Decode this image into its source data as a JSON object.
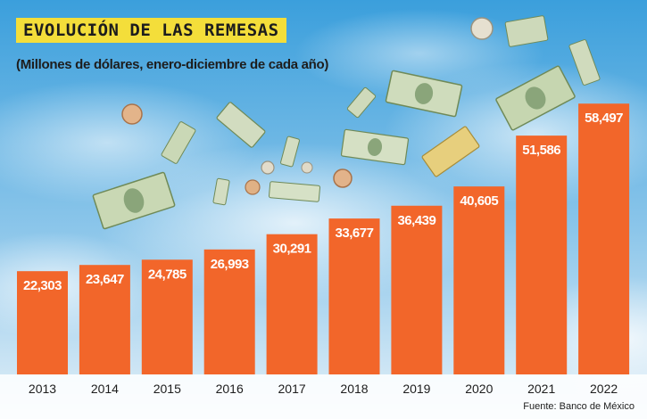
{
  "header": {
    "title": "EVOLUCIÓN DE LAS REMESAS",
    "subtitle": "(Millones de dólares, enero-diciembre de cada año)"
  },
  "footer": {
    "source": "Fuente: Banco de México"
  },
  "colors": {
    "bar": "#f2662a",
    "title_bg": "#f4de3a",
    "sky_top": "#3b9fdc",
    "sky_bottom": "#dcecf7"
  },
  "icons": [
    "dollar-bill-icon",
    "coin-icon"
  ],
  "chart_data": {
    "type": "bar",
    "title": "EVOLUCIÓN DE LAS REMESAS",
    "subtitle": "(Millones de dólares, enero-diciembre de cada año)",
    "categories": [
      "2013",
      "2014",
      "2015",
      "2016",
      "2017",
      "2018",
      "2019",
      "2020",
      "2021",
      "2022"
    ],
    "values": [
      22303,
      23647,
      24785,
      26993,
      30291,
      33677,
      36439,
      40605,
      51586,
      58497
    ],
    "value_labels": [
      "22,303",
      "23,647",
      "24,785",
      "26,993",
      "30,291",
      "33,677",
      "36,439",
      "40,605",
      "51,586",
      "58,497"
    ],
    "xlabel": "",
    "ylabel": "",
    "grid": false,
    "legend": "none"
  }
}
